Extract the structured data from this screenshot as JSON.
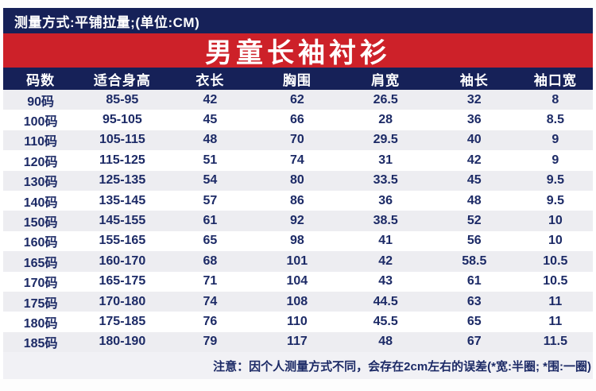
{
  "topbar": {
    "text": "测量方式:平铺拉量;(单位:CM)"
  },
  "banner": {
    "title": "男童长袖衬衫"
  },
  "table": {
    "headers": [
      "码数",
      "适合身高",
      "衣长",
      "胸围",
      "肩宽",
      "袖长",
      "袖口宽"
    ],
    "rows": [
      [
        "90码",
        "85-95",
        "42",
        "62",
        "26.5",
        "32",
        "8"
      ],
      [
        "100码",
        "95-105",
        "45",
        "66",
        "28",
        "36",
        "8.5"
      ],
      [
        "110码",
        "105-115",
        "48",
        "70",
        "29.5",
        "40",
        "9"
      ],
      [
        "120码",
        "115-125",
        "51",
        "74",
        "31",
        "42",
        "9"
      ],
      [
        "130码",
        "125-135",
        "54",
        "80",
        "33.5",
        "45",
        "9.5"
      ],
      [
        "140码",
        "135-145",
        "57",
        "86",
        "36",
        "48",
        "9.5"
      ],
      [
        "150码",
        "145-155",
        "61",
        "92",
        "38.5",
        "52",
        "10"
      ],
      [
        "160码",
        "155-165",
        "65",
        "98",
        "41",
        "56",
        "10"
      ],
      [
        "165码",
        "160-170",
        "68",
        "101",
        "42",
        "58.5",
        "10.5"
      ],
      [
        "170码",
        "165-175",
        "71",
        "104",
        "43",
        "61",
        "10.5"
      ],
      [
        "175码",
        "170-180",
        "74",
        "108",
        "44.5",
        "63",
        "11"
      ],
      [
        "180码",
        "175-185",
        "76",
        "110",
        "45.5",
        "65",
        "11"
      ],
      [
        "185码",
        "180-190",
        "79",
        "117",
        "48",
        "67",
        "11.5"
      ]
    ]
  },
  "note": {
    "text": "注意：因个人测量方式不同，会存在2cm左右的误差(*宽:半圈; *围:一圈)"
  },
  "colors": {
    "navy": "#162158",
    "red": "#cd2129",
    "row_alt": "#ededf1",
    "note_bg": "#f1f1f5",
    "cell_text": "#1c2a66"
  }
}
